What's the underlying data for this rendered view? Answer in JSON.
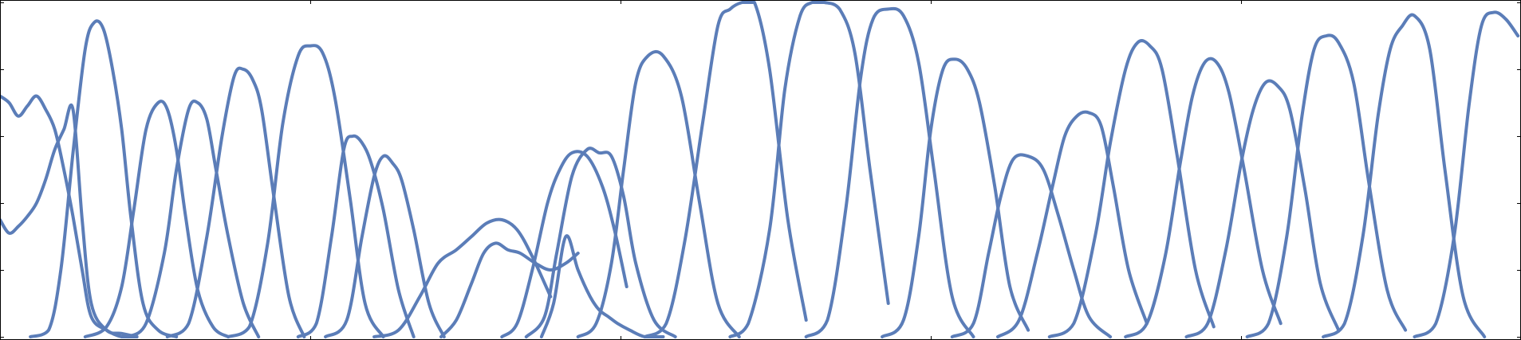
{
  "chart_data": {
    "type": "line",
    "title": "",
    "xlabel": "",
    "ylabel": "",
    "xlim": [
      0,
      1000
    ],
    "ylim": [
      0,
      1
    ],
    "grid": false,
    "legend": "none",
    "line_color": "#5b7db8",
    "x_ticks": [
      0,
      204,
      408,
      612,
      816,
      1000
    ],
    "y_ticks": [
      0,
      0.2,
      0.4,
      0.6,
      0.8,
      1.0
    ],
    "series": [
      {
        "x": [
          0,
          6,
          12,
          18,
          24,
          30,
          36,
          42,
          48,
          54,
          60,
          70,
          80,
          90
        ],
        "y": [
          0.35,
          0.31,
          0.33,
          0.36,
          0.4,
          0.47,
          0.56,
          0.62,
          0.68,
          0.35,
          0.1,
          0.02,
          0.01,
          0.0
        ]
      },
      {
        "x": [
          0,
          6,
          12,
          18,
          24,
          30,
          36,
          42,
          48,
          54,
          60,
          70,
          80,
          90
        ],
        "y": [
          0.72,
          0.7,
          0.66,
          0.69,
          0.72,
          0.68,
          0.62,
          0.5,
          0.36,
          0.2,
          0.06,
          0.02,
          0.0,
          0.0
        ]
      },
      {
        "x": [
          20,
          32,
          40,
          48,
          56,
          62,
          68,
          74,
          80,
          86,
          94,
          104,
          116
        ],
        "y": [
          0.0,
          0.02,
          0.2,
          0.55,
          0.86,
          0.94,
          0.92,
          0.8,
          0.62,
          0.36,
          0.1,
          0.02,
          0.0
        ]
      },
      {
        "x": [
          56,
          70,
          80,
          88,
          96,
          104,
          110,
          116,
          122,
          130,
          140,
          150
        ],
        "y": [
          0.0,
          0.03,
          0.15,
          0.38,
          0.62,
          0.7,
          0.68,
          0.56,
          0.36,
          0.14,
          0.03,
          0.0
        ]
      },
      {
        "x": [
          84,
          96,
          108,
          116,
          124,
          130,
          136,
          142,
          150,
          160,
          170
        ],
        "y": [
          0.0,
          0.04,
          0.25,
          0.5,
          0.68,
          0.7,
          0.65,
          0.5,
          0.3,
          0.1,
          0.0
        ]
      },
      {
        "x": [
          110,
          124,
          136,
          146,
          154,
          160,
          166,
          172,
          180,
          190,
          200
        ],
        "y": [
          0.0,
          0.04,
          0.3,
          0.6,
          0.78,
          0.8,
          0.77,
          0.68,
          0.42,
          0.12,
          0.0
        ]
      },
      {
        "x": [
          150,
          164,
          176,
          186,
          196,
          204,
          212,
          220,
          230,
          240,
          252
        ],
        "y": [
          0.0,
          0.03,
          0.28,
          0.64,
          0.84,
          0.87,
          0.85,
          0.72,
          0.42,
          0.1,
          0.0
        ]
      },
      {
        "x": [
          196,
          208,
          218,
          226,
          232,
          238,
          244,
          252,
          262,
          272
        ],
        "y": [
          0.0,
          0.04,
          0.3,
          0.56,
          0.6,
          0.58,
          0.52,
          0.38,
          0.14,
          0.0
        ]
      },
      {
        "x": [
          214,
          228,
          238,
          246,
          252,
          258,
          264,
          272,
          282,
          292
        ],
        "y": [
          0.0,
          0.05,
          0.3,
          0.48,
          0.54,
          0.52,
          0.47,
          0.32,
          0.1,
          0.0
        ]
      },
      {
        "x": [
          246,
          262,
          276,
          288,
          300,
          310,
          320,
          330,
          340,
          350,
          362
        ],
        "y": [
          0.0,
          0.02,
          0.12,
          0.22,
          0.26,
          0.3,
          0.34,
          0.35,
          0.32,
          0.24,
          0.12
        ]
      },
      {
        "x": [
          290,
          300,
          310,
          318,
          326,
          334,
          342,
          352,
          362,
          372,
          380
        ],
        "y": [
          0.0,
          0.05,
          0.16,
          0.25,
          0.28,
          0.26,
          0.25,
          0.22,
          0.2,
          0.22,
          0.25
        ]
      },
      {
        "x": [
          330,
          340,
          350,
          360,
          368,
          376,
          386,
          396,
          404,
          412
        ],
        "y": [
          0.0,
          0.04,
          0.2,
          0.4,
          0.5,
          0.55,
          0.54,
          0.45,
          0.32,
          0.15
        ]
      },
      {
        "x": [
          346,
          358,
          366,
          376,
          386,
          394,
          402,
          410,
          418,
          430,
          444
        ],
        "y": [
          0.0,
          0.06,
          0.25,
          0.48,
          0.56,
          0.55,
          0.54,
          0.42,
          0.22,
          0.05,
          0.0
        ]
      },
      {
        "x": [
          356,
          364,
          372,
          380,
          388,
          394,
          400,
          406,
          414,
          424,
          436
        ],
        "y": [
          0.0,
          0.1,
          0.3,
          0.2,
          0.12,
          0.08,
          0.06,
          0.04,
          0.02,
          0.0,
          0.0
        ]
      },
      {
        "x": [
          380,
          392,
          402,
          410,
          418,
          426,
          436,
          448,
          460,
          472,
          486
        ],
        "y": [
          0.0,
          0.04,
          0.22,
          0.5,
          0.76,
          0.84,
          0.84,
          0.72,
          0.4,
          0.1,
          0.0
        ]
      },
      {
        "x": [
          424,
          438,
          450,
          462,
          472,
          480,
          488,
          496,
          506,
          518,
          530
        ],
        "y": [
          0.0,
          0.04,
          0.28,
          0.64,
          0.93,
          0.98,
          1.0,
          1.0,
          0.8,
          0.35,
          0.05
        ]
      },
      {
        "x": [
          480,
          492,
          506,
          516,
          526,
          534,
          542,
          552,
          562,
          572,
          584
        ],
        "y": [
          0.0,
          0.04,
          0.32,
          0.74,
          0.96,
          1.0,
          1.0,
          0.98,
          0.85,
          0.5,
          0.1
        ]
      },
      {
        "x": [
          530,
          544,
          556,
          566,
          574,
          584,
          594,
          604,
          614,
          626,
          640
        ],
        "y": [
          0.0,
          0.05,
          0.38,
          0.78,
          0.95,
          0.98,
          0.96,
          0.82,
          0.5,
          0.12,
          0.0
        ]
      },
      {
        "x": [
          580,
          594,
          604,
          612,
          620,
          628,
          636,
          644,
          654,
          664,
          676
        ],
        "y": [
          0.0,
          0.05,
          0.3,
          0.62,
          0.8,
          0.83,
          0.8,
          0.7,
          0.45,
          0.15,
          0.02
        ]
      },
      {
        "x": [
          626,
          640,
          650,
          658,
          666,
          676,
          686,
          696,
          706,
          716,
          730
        ],
        "y": [
          0.0,
          0.04,
          0.25,
          0.42,
          0.53,
          0.54,
          0.5,
          0.36,
          0.2,
          0.06,
          0.0
        ]
      },
      {
        "x": [
          656,
          670,
          682,
          692,
          700,
          708,
          716,
          724,
          732,
          742,
          754
        ],
        "y": [
          0.0,
          0.05,
          0.25,
          0.45,
          0.6,
          0.66,
          0.67,
          0.63,
          0.45,
          0.2,
          0.04
        ]
      },
      {
        "x": [
          690,
          706,
          720,
          730,
          740,
          748,
          756,
          764,
          774,
          786,
          798
        ],
        "y": [
          0.0,
          0.04,
          0.3,
          0.58,
          0.8,
          0.88,
          0.87,
          0.8,
          0.54,
          0.2,
          0.03
        ]
      },
      {
        "x": [
          740,
          754,
          766,
          776,
          784,
          792,
          800,
          808,
          818,
          830,
          842
        ],
        "y": [
          0.0,
          0.04,
          0.24,
          0.52,
          0.72,
          0.82,
          0.82,
          0.73,
          0.5,
          0.2,
          0.04
        ]
      },
      {
        "x": [
          780,
          794,
          806,
          816,
          824,
          832,
          840,
          848,
          858,
          868,
          880
        ],
        "y": [
          0.0,
          0.04,
          0.26,
          0.52,
          0.68,
          0.76,
          0.75,
          0.68,
          0.44,
          0.16,
          0.02
        ]
      },
      {
        "x": [
          820,
          834,
          846,
          856,
          864,
          872,
          880,
          890,
          900,
          912,
          924
        ],
        "y": [
          0.0,
          0.04,
          0.3,
          0.66,
          0.86,
          0.9,
          0.88,
          0.76,
          0.46,
          0.14,
          0.02
        ]
      },
      {
        "x": [
          870,
          884,
          896,
          906,
          914,
          922,
          930,
          940,
          950,
          962,
          976
        ],
        "y": [
          0.0,
          0.04,
          0.3,
          0.66,
          0.86,
          0.93,
          0.96,
          0.86,
          0.5,
          0.12,
          0.0
        ]
      },
      {
        "x": [
          930,
          944,
          956,
          966,
          974,
          982,
          990,
          998
        ],
        "y": [
          0.0,
          0.04,
          0.3,
          0.7,
          0.93,
          0.97,
          0.95,
          0.9
        ]
      }
    ]
  }
}
